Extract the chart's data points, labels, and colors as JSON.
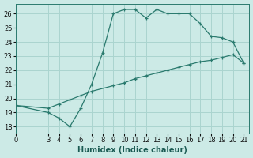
{
  "xlabel": "Humidex (Indice chaleur)",
  "xlim": [
    0,
    21.5
  ],
  "ylim": [
    17.5,
    26.7
  ],
  "xticks": [
    0,
    3,
    4,
    5,
    6,
    7,
    8,
    9,
    10,
    11,
    12,
    13,
    14,
    15,
    16,
    17,
    18,
    19,
    20,
    21
  ],
  "yticks": [
    18,
    19,
    20,
    21,
    22,
    23,
    24,
    25,
    26
  ],
  "line1_x": [
    0,
    3,
    4,
    5,
    6,
    7,
    8,
    9,
    10,
    11,
    12,
    13,
    14,
    15,
    16,
    17,
    18,
    19,
    20,
    21
  ],
  "line1_y": [
    19.5,
    19.0,
    18.6,
    18.0,
    19.3,
    21.0,
    23.2,
    26.0,
    26.3,
    26.3,
    25.7,
    26.3,
    26.0,
    26.0,
    26.0,
    25.3,
    24.4,
    24.3,
    24.0,
    22.5
  ],
  "line2_x": [
    0,
    3,
    4,
    5,
    6,
    7,
    9,
    10,
    11,
    12,
    13,
    14,
    15,
    16,
    17,
    18,
    19,
    20,
    21
  ],
  "line2_y": [
    19.5,
    19.3,
    19.6,
    19.9,
    20.2,
    20.5,
    20.9,
    21.1,
    21.4,
    21.6,
    21.8,
    22.0,
    22.2,
    22.4,
    22.6,
    22.7,
    22.9,
    23.1,
    22.5
  ],
  "line_color": "#2a7a6e",
  "bg_color": "#cceae6",
  "grid_color": "#aad4cf",
  "tick_fontsize": 6,
  "label_fontsize": 7,
  "label_color": "#1a5a52"
}
